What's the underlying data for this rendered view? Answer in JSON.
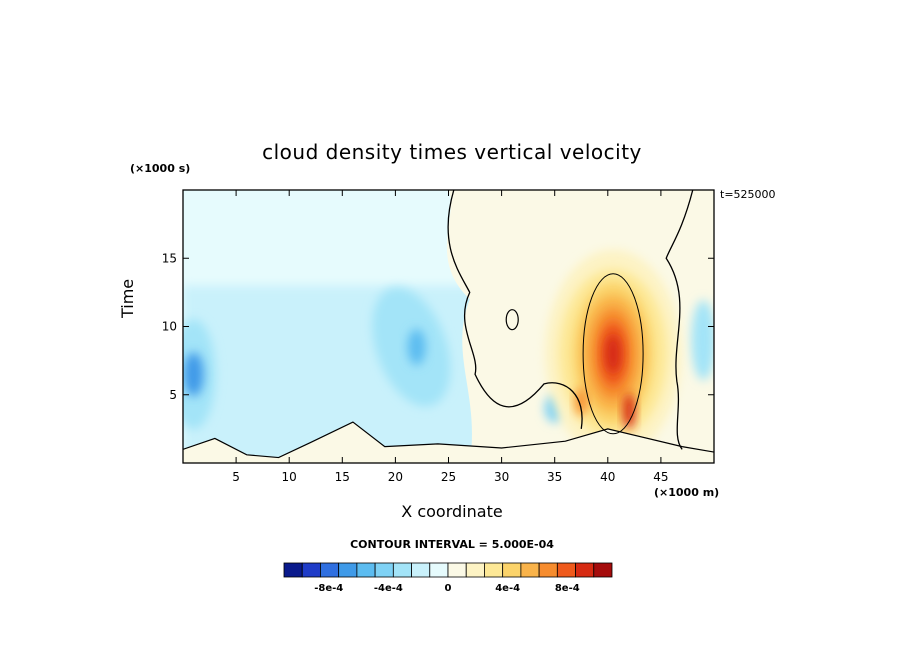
{
  "chart_data": {
    "type": "heatmap",
    "title": "cloud density times vertical velocity",
    "xlabel": "X coordinate",
    "ylabel": "Time",
    "x_unit": "(×1000 m)",
    "y_unit": "(×1000 s)",
    "annotation": "t=525000",
    "xlim": [
      0,
      50
    ],
    "ylim": [
      0,
      20
    ],
    "x_ticks": [
      5,
      10,
      15,
      20,
      25,
      30,
      35,
      40,
      45
    ],
    "y_ticks": [
      5,
      10,
      15
    ],
    "colorbar": {
      "title": "CONTOUR INTERVAL = 5.000E-04",
      "tick_labels": [
        "-8e-4",
        "-4e-4",
        "0",
        "4e-4",
        "8e-4"
      ],
      "tick_values": [
        -0.0008,
        -0.0004,
        0,
        0.0004,
        0.0008
      ],
      "range": [
        -0.0011,
        0.0011
      ],
      "colors": [
        "#0a1a8c",
        "#1f3cc8",
        "#2f6fe0",
        "#3f9ae8",
        "#5cbcf0",
        "#7fd2f5",
        "#a3e4f8",
        "#c9f1fb",
        "#e6fbfd",
        "#fbf9e6",
        "#fdf3c4",
        "#fde896",
        "#fbd36a",
        "#f9b34a",
        "#f68c2e",
        "#ef5a1c",
        "#d62a12",
        "#a50c0c"
      ]
    },
    "features": [
      {
        "label": "positive maximum",
        "x": 42,
        "y": 6,
        "value": 0.0009
      },
      {
        "label": "negative minimum",
        "x": 1,
        "y": 6.5,
        "value": -0.0005
      },
      {
        "label": "negative minimum",
        "x": 22,
        "y": 8.5,
        "value": -0.0005
      }
    ]
  }
}
